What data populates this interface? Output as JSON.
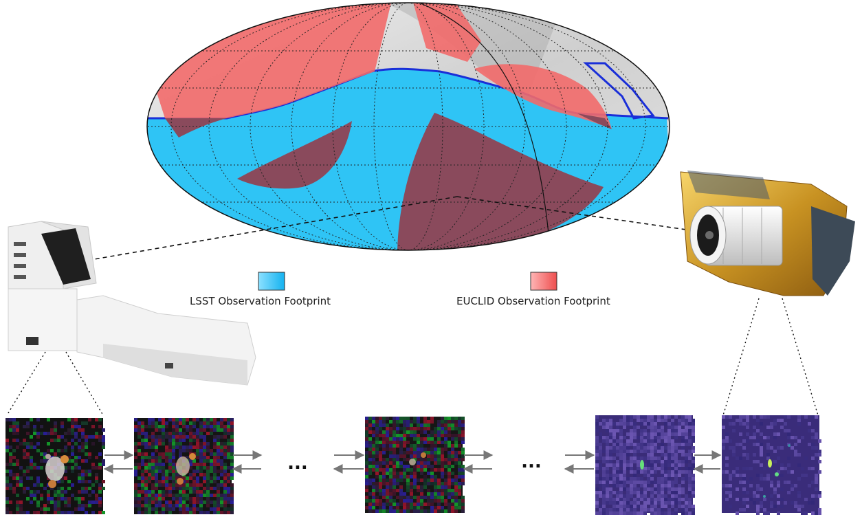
{
  "legend": {
    "lsst": {
      "label": "LSST Observation Footprint",
      "color": "#2fc4f5"
    },
    "euclid": {
      "label": "EUCLID Observation Footprint",
      "color": "#f26a6a"
    }
  },
  "sky_map": {
    "projection": "mollweide-style all-sky map",
    "overlap_color": "#8a4a5c"
  },
  "instruments": {
    "ground": {
      "icon": "ground-telescope-icon"
    },
    "space": {
      "icon": "space-telescope-icon"
    }
  },
  "pipeline": {
    "ellipsis": "...",
    "panels": [
      {
        "name": "lsst-cutout-high-snr",
        "palette": "rgb"
      },
      {
        "name": "lsst-cutout-mid-snr",
        "palette": "rgb"
      },
      {
        "name": "lsst-cutout-low-snr",
        "palette": "rgb"
      },
      {
        "name": "euclid-cutout-noisy",
        "palette": "blue"
      },
      {
        "name": "euclid-cutout-clean",
        "palette": "blue"
      }
    ]
  }
}
